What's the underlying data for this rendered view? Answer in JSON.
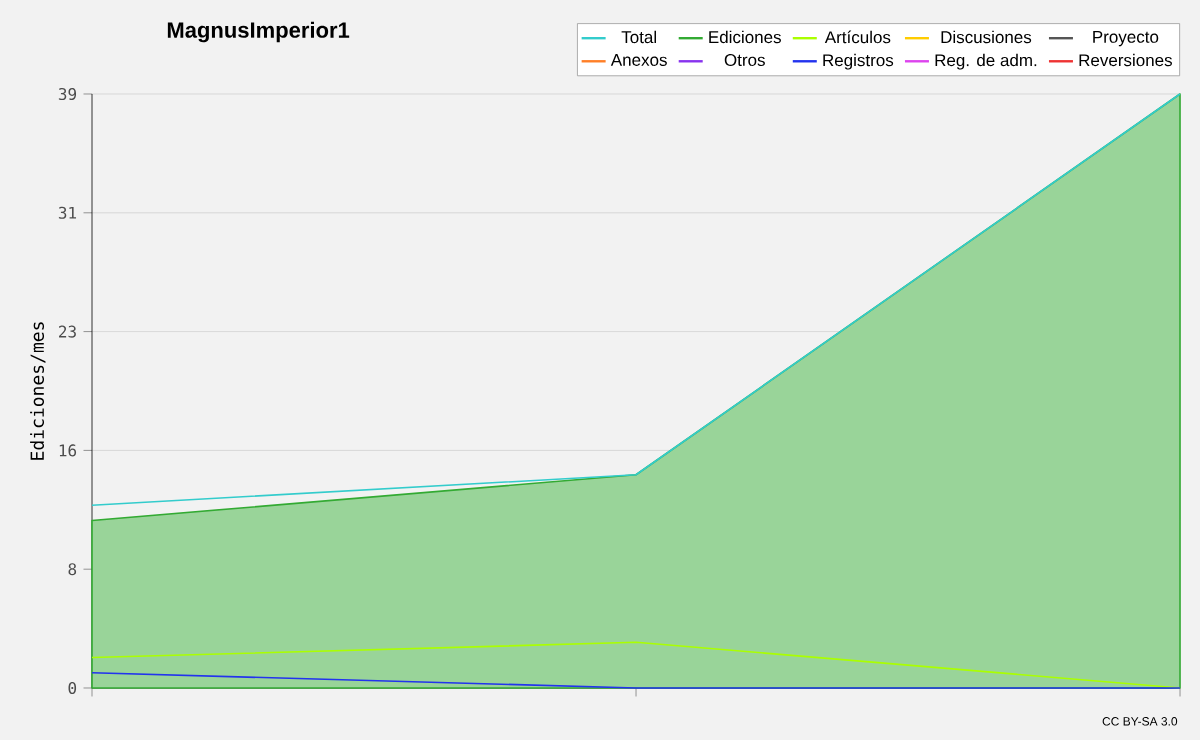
{
  "chart_data": {
    "type": "line",
    "title": "MagnusImperior1",
    "ylabel": "Ediciones/mes",
    "categories": [
      null,
      null,
      null
    ],
    "ylim": [
      0,
      39
    ],
    "yticks": [
      0,
      {
        "value": 7.8,
        "label": "8"
      },
      {
        "value": 15.6,
        "label": "16"
      },
      {
        "value": 23.4,
        "label": "23"
      },
      {
        "value": 31.2,
        "label": "31"
      },
      39
    ],
    "tick_labels": "y",
    "grid": "y",
    "legend": "top right",
    "annotations": [
      "CC BY-SA 3.0"
    ],
    "series": [
      {
        "name": "Total",
        "type": "line",
        "color": "#33cccc",
        "values": [
          12,
          14,
          39
        ]
      },
      {
        "name": "Ediciones",
        "type": "area",
        "color": "#33aa33",
        "values": [
          11,
          14,
          39
        ]
      },
      {
        "name": "Artículos",
        "color": "#aaff00",
        "values": [
          2,
          3,
          0
        ]
      },
      {
        "name": "Discusiones",
        "color": "#ffcc00",
        "values": [
          null,
          null,
          null
        ]
      },
      {
        "name": "Proyecto",
        "color": "#555555",
        "values": [
          null,
          null,
          null
        ]
      },
      {
        "name": "Anexos",
        "color": "#ff7f27",
        "values": [
          null,
          null,
          null
        ]
      },
      {
        "name": "Otros",
        "color": "#8833ee",
        "values": [
          null,
          null,
          null
        ]
      },
      {
        "name": "Registros",
        "color": "#2233ee",
        "values": [
          1,
          0,
          0
        ]
      },
      {
        "name": "Reg. de adm.",
        "color": "#dd44ee",
        "values": [
          null,
          null,
          null
        ]
      },
      {
        "name": "Reversiones",
        "color": "#ee3333",
        "values": [
          null,
          null,
          null
        ]
      }
    ]
  }
}
